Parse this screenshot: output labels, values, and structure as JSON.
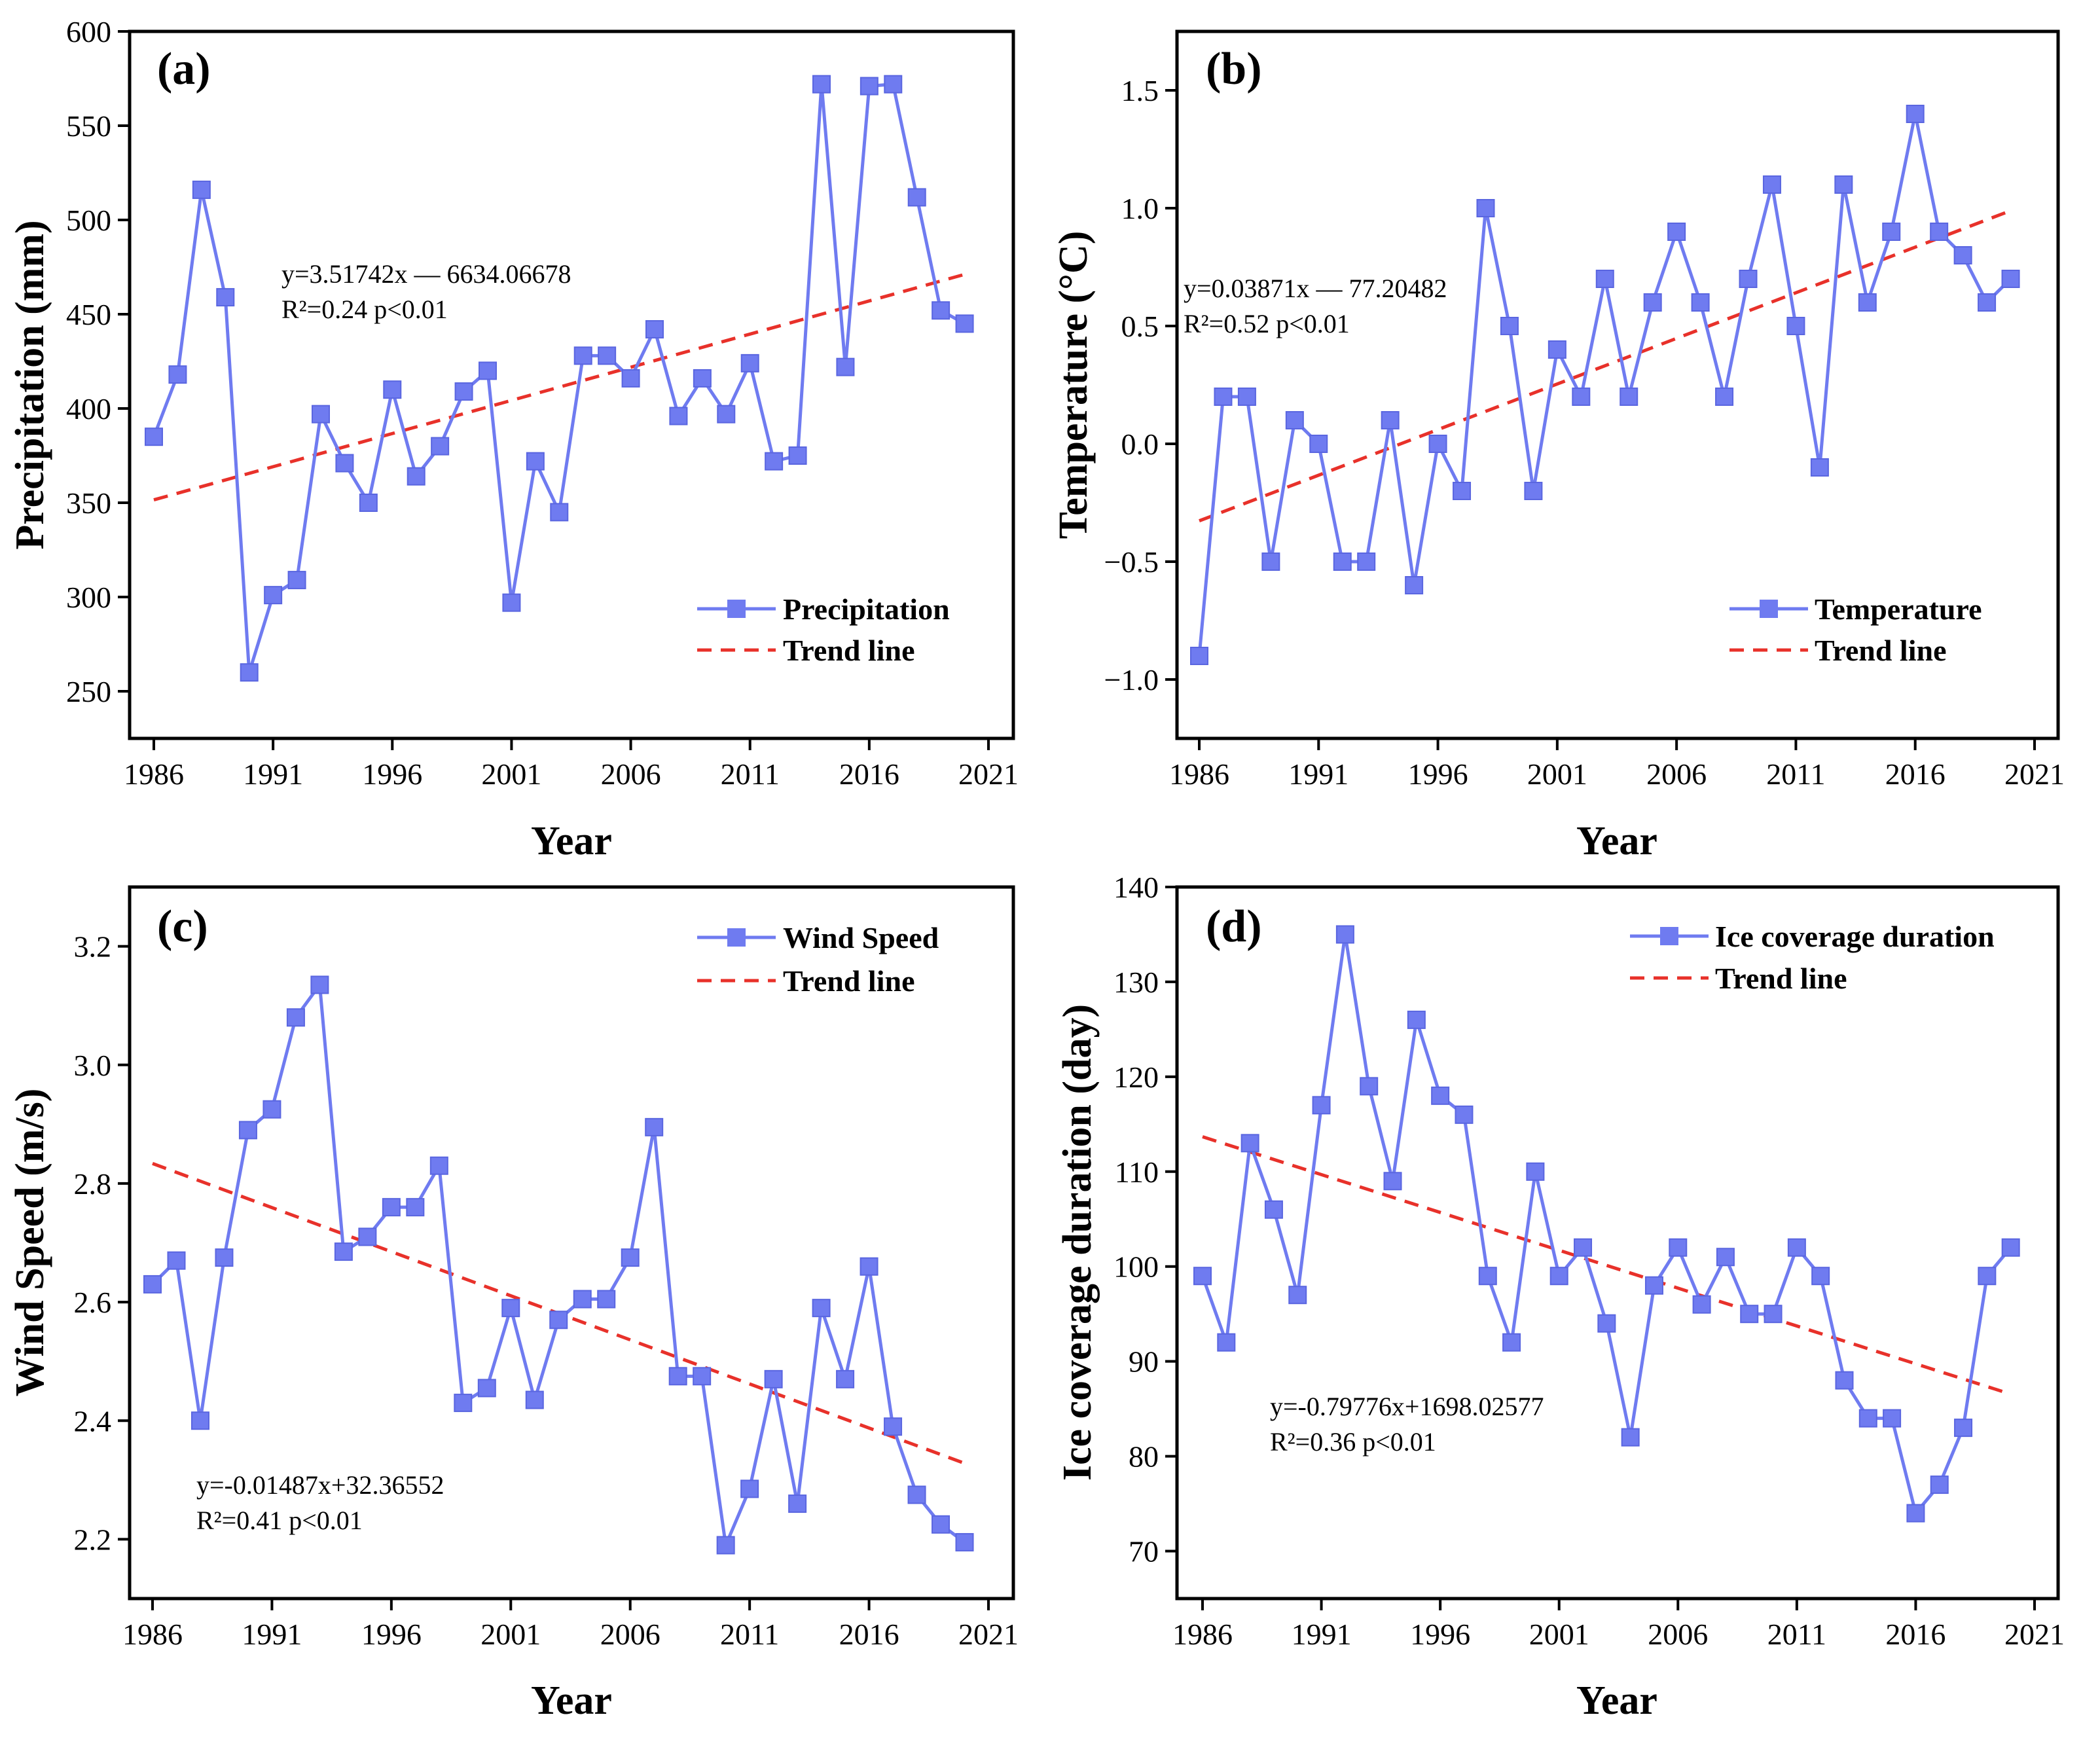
{
  "chart_data": [
    {
      "type": "line",
      "panel": "(a)",
      "xlabel": "Year",
      "ylabel": "Precipitation (mm)",
      "xlim": [
        1986,
        2021
      ],
      "ylim": [
        225,
        600
      ],
      "xticks": [
        "1986",
        "1991",
        "1996",
        "2001",
        "2006",
        "2011",
        "2016",
        "2021"
      ],
      "yticks": [
        "250",
        "300",
        "350",
        "400",
        "450",
        "500",
        "550",
        "600"
      ],
      "x": [
        1986,
        1987,
        1988,
        1989,
        1990,
        1991,
        1992,
        1993,
        1994,
        1995,
        1996,
        1997,
        1998,
        1999,
        2000,
        2001,
        2002,
        2003,
        2004,
        2005,
        2006,
        2007,
        2008,
        2009,
        2010,
        2011,
        2012,
        2013,
        2014,
        2015,
        2016,
        2017,
        2018,
        2019,
        2020
      ],
      "series": [
        {
          "name": "Precipitation",
          "values": [
            385,
            418,
            516,
            459,
            260,
            301,
            309,
            397,
            371,
            350,
            410,
            364,
            380,
            409,
            420,
            297,
            372,
            345,
            428,
            428,
            416,
            442,
            396,
            416,
            397,
            424,
            372,
            375,
            572,
            422,
            571,
            572,
            512,
            452,
            445
          ]
        }
      ],
      "trend": {
        "name": "Trend line",
        "slope": 3.51742,
        "intercept": -6634.06678
      },
      "equation": "y=3.51742x — 6634.06678",
      "r2_text": "R²=0.24 p<0.01",
      "legend": [
        "Precipitation",
        "Trend line"
      ]
    },
    {
      "type": "line",
      "panel": "(b)",
      "xlabel": "Year",
      "ylabel": "Temperature (°C)",
      "xlim": [
        1986,
        2021
      ],
      "ylim": [
        -1.25,
        1.75
      ],
      "xticks": [
        "1986",
        "1991",
        "1996",
        "2001",
        "2006",
        "2011",
        "2016",
        "2021"
      ],
      "yticks": [
        "−1.0",
        "−0.5",
        "0.0",
        "0.5",
        "1.0",
        "1.5"
      ],
      "x": [
        1986,
        1987,
        1988,
        1989,
        1990,
        1991,
        1992,
        1993,
        1994,
        1995,
        1996,
        1997,
        1998,
        1999,
        2000,
        2001,
        2002,
        2003,
        2004,
        2005,
        2006,
        2007,
        2008,
        2009,
        2010,
        2011,
        2012,
        2013,
        2014,
        2015,
        2016,
        2017,
        2018,
        2019,
        2020
      ],
      "series": [
        {
          "name": "Temperature",
          "values": [
            -0.9,
            0.2,
            0.2,
            -0.5,
            0.1,
            0.0,
            -0.5,
            -0.5,
            0.1,
            -0.6,
            0.0,
            -0.2,
            1.0,
            0.5,
            -0.2,
            0.4,
            0.2,
            0.7,
            0.2,
            0.6,
            0.9,
            0.6,
            0.2,
            0.7,
            1.1,
            0.5,
            -0.1,
            1.1,
            0.6,
            0.9,
            1.4,
            0.9,
            0.8,
            0.6,
            0.7
          ]
        }
      ],
      "trend": {
        "name": "Trend line",
        "slope": 0.03871,
        "intercept": -77.20482
      },
      "equation": "y=0.03871x — 77.20482",
      "r2_text": "R²=0.52 p<0.01",
      "legend": [
        "Temperature",
        "Trend line"
      ]
    },
    {
      "type": "line",
      "panel": "(c)",
      "xlabel": "Year",
      "ylabel": "Wind Speed (m/s)",
      "xlim": [
        1986,
        2021
      ],
      "ylim": [
        2.1,
        3.3
      ],
      "xticks": [
        "1986",
        "1991",
        "1996",
        "2001",
        "2006",
        "2011",
        "2016",
        "2021"
      ],
      "yticks": [
        "2.2",
        "2.4",
        "2.6",
        "2.8",
        "3.0",
        "3.2"
      ],
      "x": [
        1986,
        1987,
        1988,
        1989,
        1990,
        1991,
        1992,
        1993,
        1994,
        1995,
        1996,
        1997,
        1998,
        1999,
        2000,
        2001,
        2002,
        2003,
        2004,
        2005,
        2006,
        2007,
        2008,
        2009,
        2010,
        2011,
        2012,
        2013,
        2014,
        2015,
        2016,
        2017,
        2018,
        2019,
        2020
      ],
      "series": [
        {
          "name": "Wind Speed",
          "values": [
            2.63,
            2.67,
            2.4,
            2.675,
            2.89,
            2.925,
            3.08,
            3.135,
            2.685,
            2.71,
            2.76,
            2.76,
            2.83,
            2.43,
            2.455,
            2.59,
            2.435,
            2.57,
            2.605,
            2.605,
            2.675,
            2.895,
            2.475,
            2.475,
            2.19,
            2.285,
            2.47,
            2.26,
            2.59,
            2.47,
            2.66,
            2.39,
            2.275,
            2.225,
            2.195
          ]
        }
      ],
      "trend": {
        "name": "Trend line",
        "slope": -0.01487,
        "intercept": 32.36552
      },
      "equation": "y=-0.01487x+32.36552",
      "r2_text": "R²=0.41 p<0.01",
      "legend": [
        "Wind Speed",
        "Trend line"
      ]
    },
    {
      "type": "line",
      "panel": "(d)",
      "xlabel": "Year",
      "ylabel": "Ice coverage duration (day)",
      "xlim": [
        1986,
        2021
      ],
      "ylim": [
        65,
        140
      ],
      "xticks": [
        "1986",
        "1991",
        "1996",
        "2001",
        "2006",
        "2011",
        "2016",
        "2021"
      ],
      "yticks": [
        "70",
        "80",
        "90",
        "100",
        "110",
        "120",
        "130",
        "140"
      ],
      "x": [
        1986,
        1987,
        1988,
        1989,
        1990,
        1991,
        1992,
        1993,
        1994,
        1995,
        1996,
        1997,
        1998,
        1999,
        2000,
        2001,
        2002,
        2003,
        2004,
        2005,
        2006,
        2007,
        2008,
        2009,
        2010,
        2011,
        2012,
        2013,
        2014,
        2015,
        2016,
        2017,
        2018,
        2019,
        2020
      ],
      "series": [
        {
          "name": "Ice coverage duration",
          "values": [
            99,
            92,
            113,
            106,
            97,
            117,
            135,
            119,
            109,
            126,
            118,
            116,
            99,
            92,
            110,
            99,
            102,
            94,
            82,
            98,
            102,
            96,
            101,
            95,
            95,
            102,
            99,
            88,
            84,
            84,
            74,
            77,
            83,
            99,
            102
          ]
        }
      ],
      "trend": {
        "name": "Trend line",
        "slope": -0.79776,
        "intercept": 1698.02577
      },
      "equation": "y=-0.79776x+1698.02577",
      "r2_text": "R²=0.36 p<0.01",
      "legend": [
        "Ice coverage duration",
        "Trend line"
      ]
    }
  ],
  "colors": {
    "series": "#6f7bf0",
    "trend": "#e8312a"
  }
}
